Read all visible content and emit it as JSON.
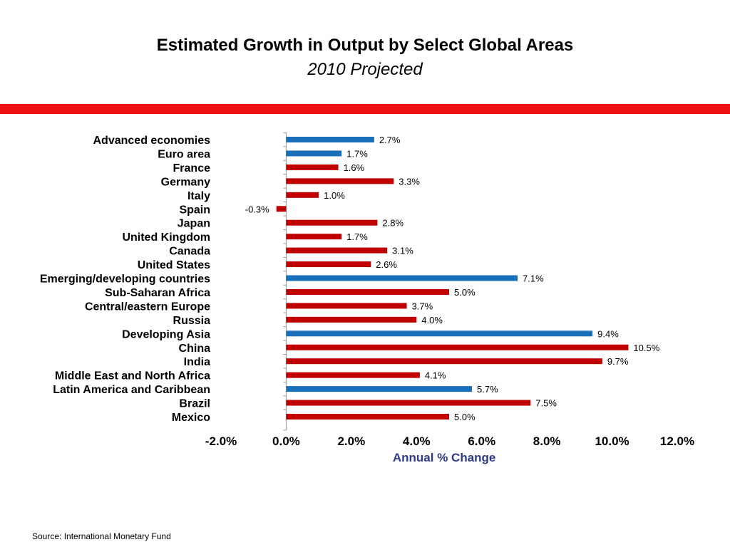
{
  "header": {
    "title": "Estimated Growth in Output by Select Global Areas",
    "subtitle": "2010 Projected"
  },
  "colors": {
    "stripe": "#ee1111",
    "blue": "#1a6fba",
    "red": "#c00000",
    "axis_title": "#2e3a87"
  },
  "footer": {
    "source": "Source:  International Monetary Fund"
  },
  "chart_data": {
    "type": "bar",
    "orientation": "horizontal",
    "title": "",
    "xlabel": "Annual % Change",
    "ylabel": "",
    "xlim": [
      -2.0,
      12.0
    ],
    "xticks": [
      -2.0,
      0.0,
      2.0,
      4.0,
      6.0,
      8.0,
      10.0,
      12.0
    ],
    "xtick_labels": [
      "-2.0%",
      "0.0%",
      "2.0%",
      "4.0%",
      "6.0%",
      "8.0%",
      "10.0%",
      "12.0%"
    ],
    "grid": false,
    "legend": "none",
    "categories": [
      "Advanced economies",
      "Euro area",
      "France",
      "Germany",
      "Italy",
      "Spain",
      "Japan",
      "United Kingdom",
      "Canada",
      "United States",
      "Emerging/developing countries",
      "Sub-Saharan Africa",
      "Central/eastern Europe",
      "Russia",
      "Developing Asia",
      "China",
      "India",
      "Middle East and North Africa",
      "Latin America and Caribbean",
      "Brazil",
      "Mexico"
    ],
    "values": [
      2.7,
      1.7,
      1.6,
      3.3,
      1.0,
      -0.3,
      2.8,
      1.7,
      3.1,
      2.6,
      7.1,
      5.0,
      3.7,
      4.0,
      9.4,
      10.5,
      9.7,
      4.1,
      5.7,
      7.5,
      5.0
    ],
    "data_labels": [
      "2.7%",
      "1.7%",
      "1.6%",
      "3.3%",
      "1.0%",
      "-0.3%",
      "2.8%",
      "1.7%",
      "3.1%",
      "2.6%",
      "7.1%",
      "5.0%",
      "3.7%",
      "4.0%",
      "9.4%",
      "10.5%",
      "9.7%",
      "4.1%",
      "5.7%",
      "7.5%",
      "5.0%"
    ],
    "bar_colors": [
      "blue",
      "blue",
      "red",
      "red",
      "red",
      "red",
      "red",
      "red",
      "red",
      "red",
      "blue",
      "red",
      "red",
      "red",
      "blue",
      "red",
      "red",
      "red",
      "blue",
      "red",
      "red"
    ]
  }
}
